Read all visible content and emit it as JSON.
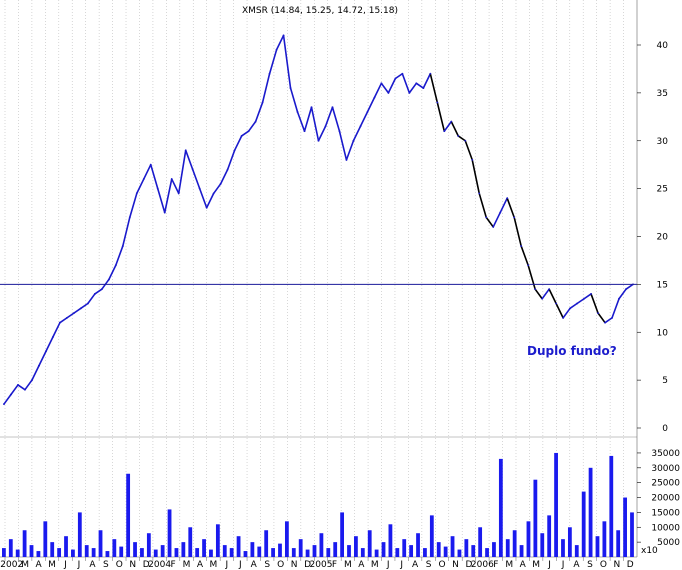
{
  "chart_data": [
    {
      "type": "line",
      "title": "XMSR (14.84, 15.25, 14.72, 15.18)",
      "ylim": [
        0,
        45
      ],
      "yticks": [
        0,
        5,
        10,
        15,
        20,
        25,
        30,
        35,
        40
      ],
      "grid": "vertical dotted",
      "colors": {
        "price": "#1a1acc",
        "decline": "#000000",
        "hline": "#1a1a99",
        "grid": "#bdbdbd"
      },
      "x_labels": [
        "2002",
        "M",
        "A",
        "M",
        "J",
        "J",
        "A",
        "S",
        "O",
        "N",
        "D",
        "2004",
        "F",
        "M",
        "A",
        "M",
        "J",
        "J",
        "A",
        "S",
        "O",
        "N",
        "D",
        "2005",
        "F",
        "M",
        "A",
        "M",
        "J",
        "J",
        "A",
        "S",
        "O",
        "N",
        "D",
        "2006",
        "F",
        "M",
        "A",
        "M",
        "J",
        "J",
        "A",
        "S",
        "O",
        "N",
        "D"
      ],
      "horizontal_line": 15,
      "annotation": "Duplo fundo?",
      "series": [
        {
          "x": [
            0,
            1,
            2,
            3,
            4,
            5,
            6,
            7,
            8,
            9,
            10,
            11,
            12,
            13,
            14,
            15,
            16,
            17,
            18,
            19,
            20,
            21,
            22,
            23,
            24,
            25,
            26,
            27,
            28,
            29,
            30,
            31,
            32,
            33,
            34,
            35,
            36,
            37,
            38,
            39,
            40,
            41,
            42,
            43,
            44,
            45,
            46,
            47,
            48,
            49,
            50,
            51,
            52,
            53,
            54,
            55,
            56,
            57,
            58,
            59,
            60,
            61,
            62,
            63,
            64,
            65,
            66,
            67,
            68,
            69,
            70,
            71,
            72,
            73,
            74,
            75,
            76,
            77,
            78,
            79,
            80,
            81,
            82,
            83,
            84,
            85,
            86,
            87,
            88,
            89,
            90
          ],
          "values": [
            2.5,
            3.5,
            4.5,
            4.0,
            5.0,
            6.5,
            8.0,
            9.5,
            11.0,
            11.5,
            12.0,
            12.5,
            13.0,
            14.0,
            14.5,
            15.5,
            17.0,
            19.0,
            22.0,
            24.5,
            26.0,
            27.5,
            25.0,
            22.5,
            26.0,
            24.5,
            29.0,
            27.0,
            25.0,
            23.0,
            24.5,
            25.5,
            27.0,
            29.0,
            30.5,
            31.0,
            32.0,
            34.0,
            37.0,
            39.5,
            41.0,
            35.5,
            33.0,
            31.0,
            33.5,
            30.0,
            31.5,
            33.5,
            31.0,
            28.0,
            30.0,
            31.5,
            33.0,
            34.5,
            36.0,
            35.0,
            36.5,
            37.0,
            35.0,
            36.0,
            35.5,
            37.0,
            34.0,
            31.0,
            32.0,
            30.5,
            30.0,
            28.0,
            24.5,
            22.0,
            21.0,
            22.5,
            24.0,
            22.0,
            19.0,
            17.0,
            14.5,
            13.5,
            14.5,
            13.0,
            11.5,
            12.5,
            13.0,
            13.5,
            14.0,
            12.0,
            11.0,
            11.5,
            13.5,
            14.5,
            15.0
          ]
        }
      ]
    },
    {
      "type": "bar",
      "title": "",
      "ylim": [
        0,
        37000
      ],
      "yticks": [
        5000,
        10000,
        15000,
        20000,
        25000,
        30000,
        35000
      ],
      "ytick_labels": [
        "5000",
        "10000",
        "15000",
        "20000",
        "25000",
        "30000",
        "35000"
      ],
      "scale_label": "x10",
      "series": [
        {
          "values": [
            3000,
            6000,
            2500,
            9000,
            4000,
            2000,
            12000,
            5000,
            3000,
            7000,
            2500,
            15000,
            4000,
            3000,
            9000,
            2000,
            6000,
            3500,
            28000,
            5000,
            3000,
            8000,
            2500,
            4000,
            16000,
            3000,
            5000,
            10000,
            3000,
            6000,
            2500,
            11000,
            4000,
            3000,
            7000,
            2000,
            5000,
            3500,
            9000,
            3000,
            4500,
            12000,
            3000,
            6000,
            2500,
            4000,
            8000,
            3000,
            5000,
            15000,
            4000,
            7000,
            3000,
            9000,
            2500,
            5000,
            11000,
            3000,
            6000,
            4000,
            8000,
            3000,
            14000,
            5000,
            3500,
            7000,
            2500,
            6000,
            4000,
            10000,
            3000,
            5000,
            33000,
            6000,
            9000,
            4000,
            12000,
            26000,
            8000,
            14000,
            35000,
            6000,
            10000,
            4000,
            22000,
            30000,
            7000,
            12000,
            34000,
            9000,
            20000,
            15000
          ]
        }
      ]
    }
  ]
}
